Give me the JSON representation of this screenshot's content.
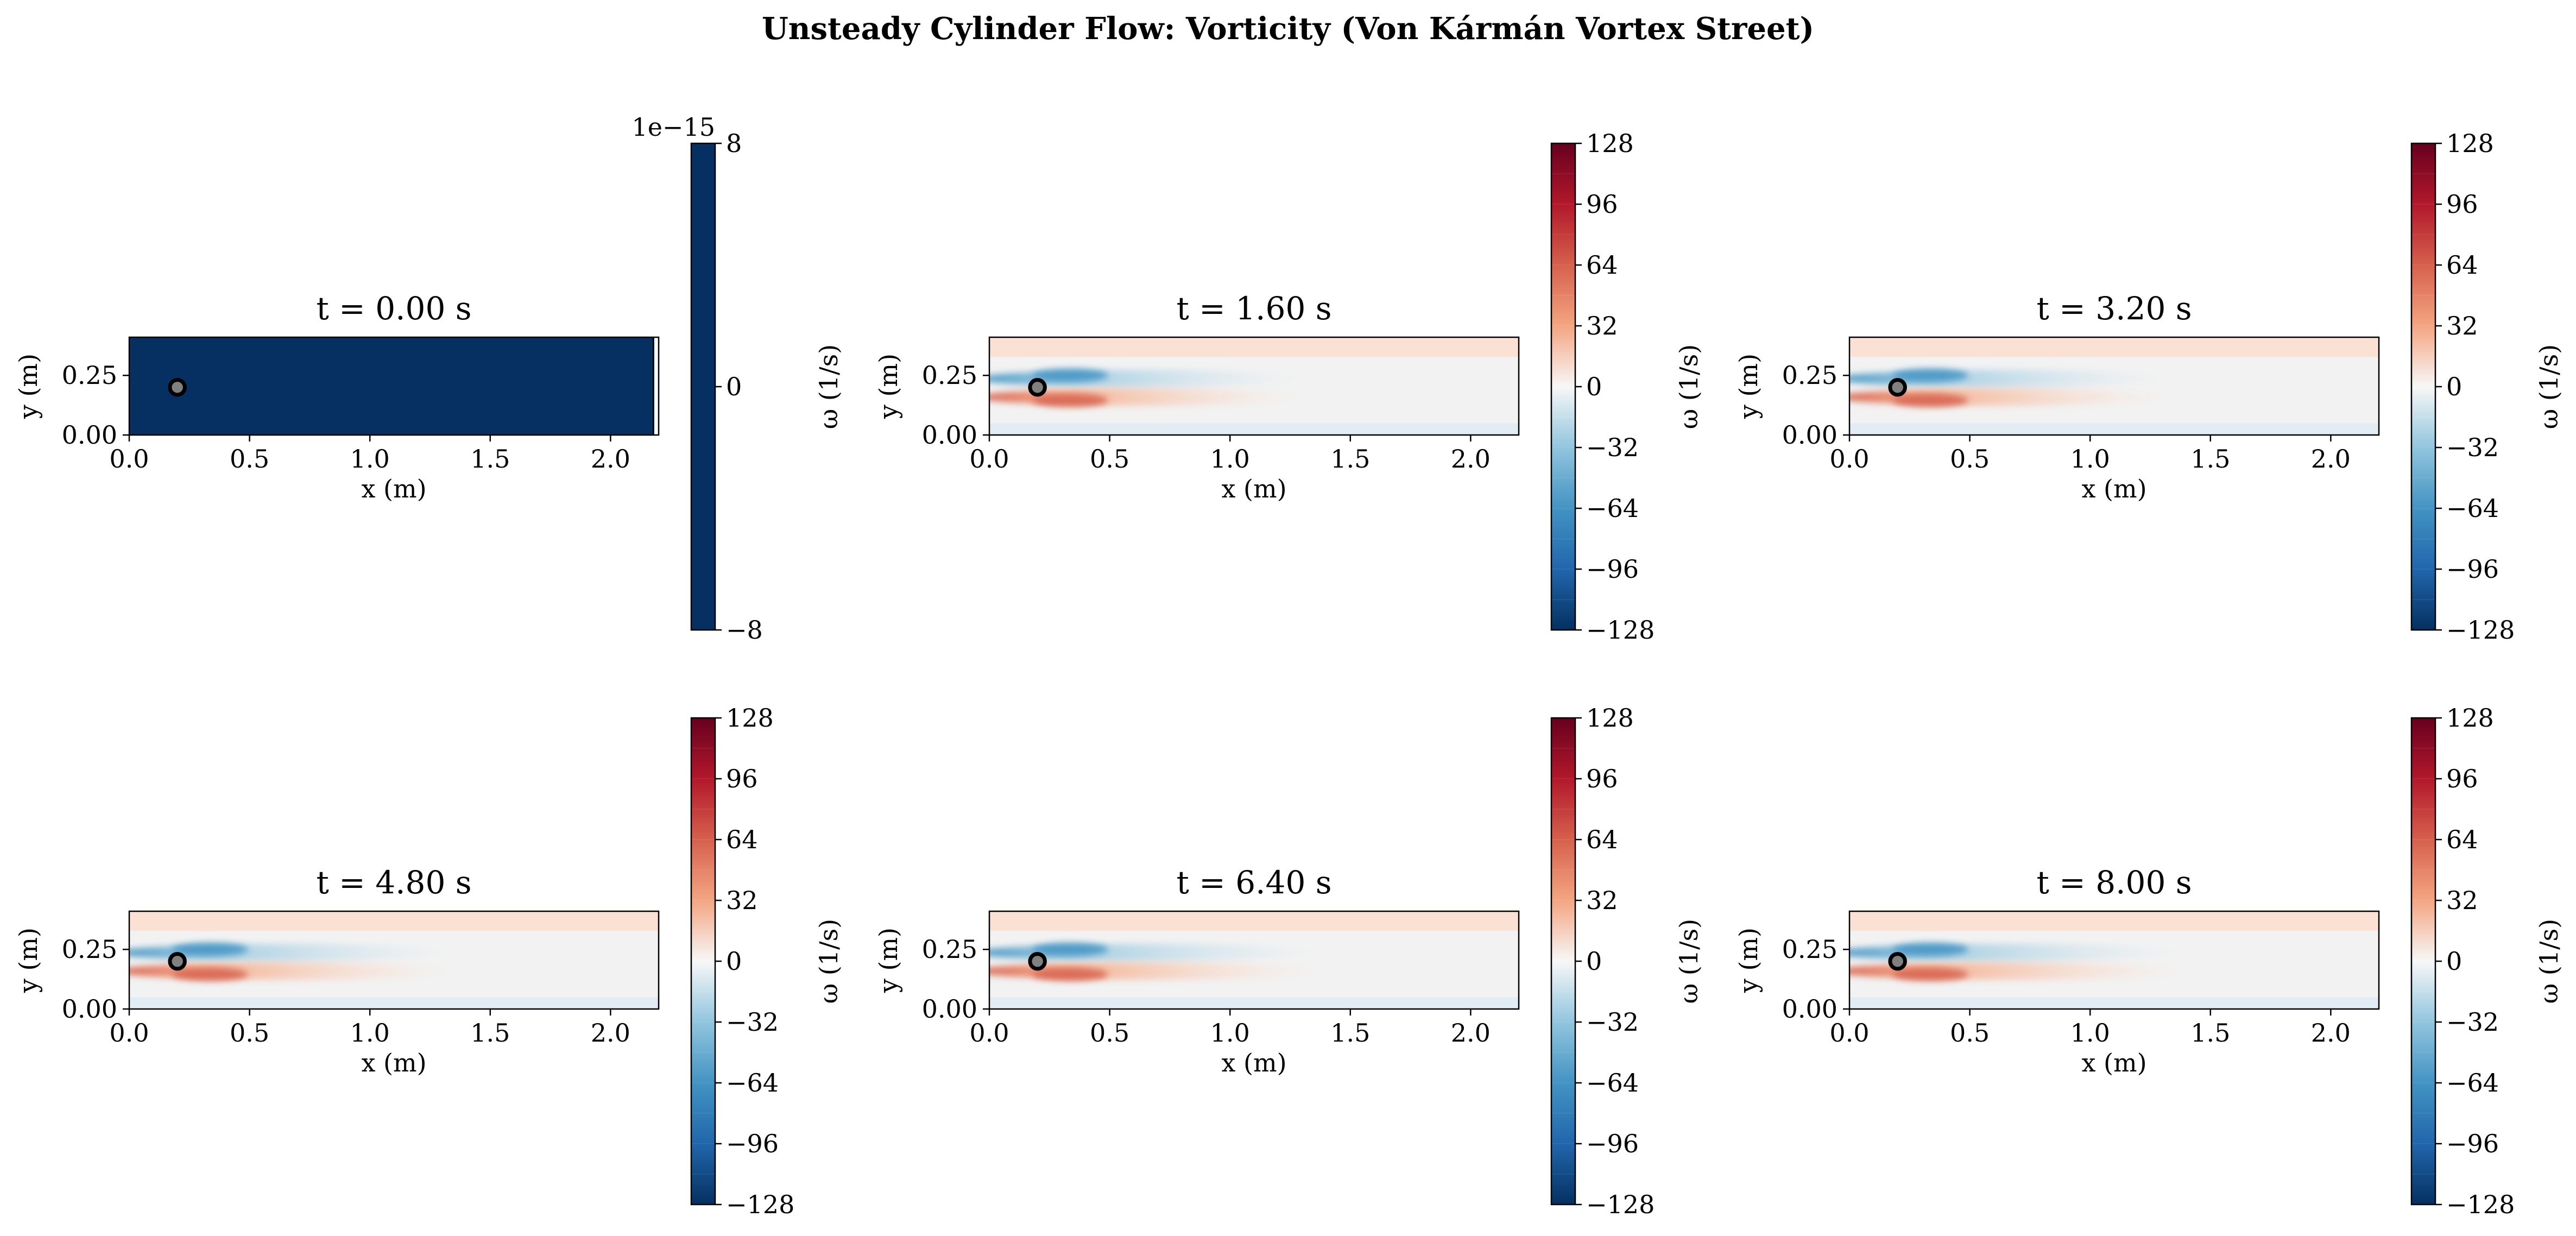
{
  "chart_data": {
    "type": "heatmap",
    "title": "Unsteady Cylinder Flow: Vorticity (Von Kármán Vortex Street)",
    "xlabel": "x (m)",
    "ylabel": "y (m)",
    "xlim": [
      0.0,
      2.2
    ],
    "ylim": [
      0.0,
      0.41
    ],
    "xticks": [
      "0.0",
      "0.5",
      "1.0",
      "1.5",
      "2.0"
    ],
    "yticks": [
      "0.00",
      "0.25"
    ],
    "colorbar_label": "ω (1/s)",
    "colormap": "RdBu_r",
    "cylinder": {
      "cx": 0.2,
      "cy": 0.2,
      "r": 0.05,
      "color": "#808080"
    },
    "panels": [
      {
        "title": "t = 0.00 s",
        "uniform": true,
        "cbar_offset": "1e−15",
        "cbar_ticks": [
          "8",
          "0",
          "−8"
        ],
        "cbar_values": [
          8,
          0,
          -8
        ],
        "cbar_range": [
          -8,
          8
        ]
      },
      {
        "title": "t = 1.60 s",
        "cbar_ticks": [
          "128",
          "96",
          "64",
          "32",
          "0",
          "−32",
          "−64",
          "−96",
          "−128"
        ],
        "cbar_values": [
          128,
          96,
          64,
          32,
          0,
          -32,
          -64,
          -96,
          -128
        ],
        "cbar_range": [
          -128,
          128
        ]
      },
      {
        "title": "t = 3.20 s",
        "cbar_ticks": [
          "128",
          "96",
          "64",
          "32",
          "0",
          "−32",
          "−64",
          "−96",
          "−128"
        ],
        "cbar_values": [
          128,
          96,
          64,
          32,
          0,
          -32,
          -64,
          -96,
          -128
        ],
        "cbar_range": [
          -128,
          128
        ]
      },
      {
        "title": "t = 4.80 s",
        "cbar_ticks": [
          "128",
          "96",
          "64",
          "32",
          "0",
          "−32",
          "−64",
          "−96",
          "−128"
        ],
        "cbar_values": [
          128,
          96,
          64,
          32,
          0,
          -32,
          -64,
          -96,
          -128
        ],
        "cbar_range": [
          -128,
          128
        ]
      },
      {
        "title": "t = 6.40 s",
        "cbar_ticks": [
          "128",
          "96",
          "64",
          "32",
          "0",
          "−32",
          "−64",
          "−96",
          "−128"
        ],
        "cbar_values": [
          128,
          96,
          64,
          32,
          0,
          -32,
          -64,
          -96,
          -128
        ],
        "cbar_range": [
          -128,
          128
        ]
      },
      {
        "title": "t = 8.00 s",
        "cbar_ticks": [
          "128",
          "96",
          "64",
          "32",
          "0",
          "−32",
          "−64",
          "−96",
          "−128"
        ],
        "cbar_values": [
          128,
          96,
          64,
          32,
          0,
          -32,
          -64,
          -96,
          -128
        ],
        "cbar_range": [
          -128,
          128
        ]
      }
    ]
  }
}
